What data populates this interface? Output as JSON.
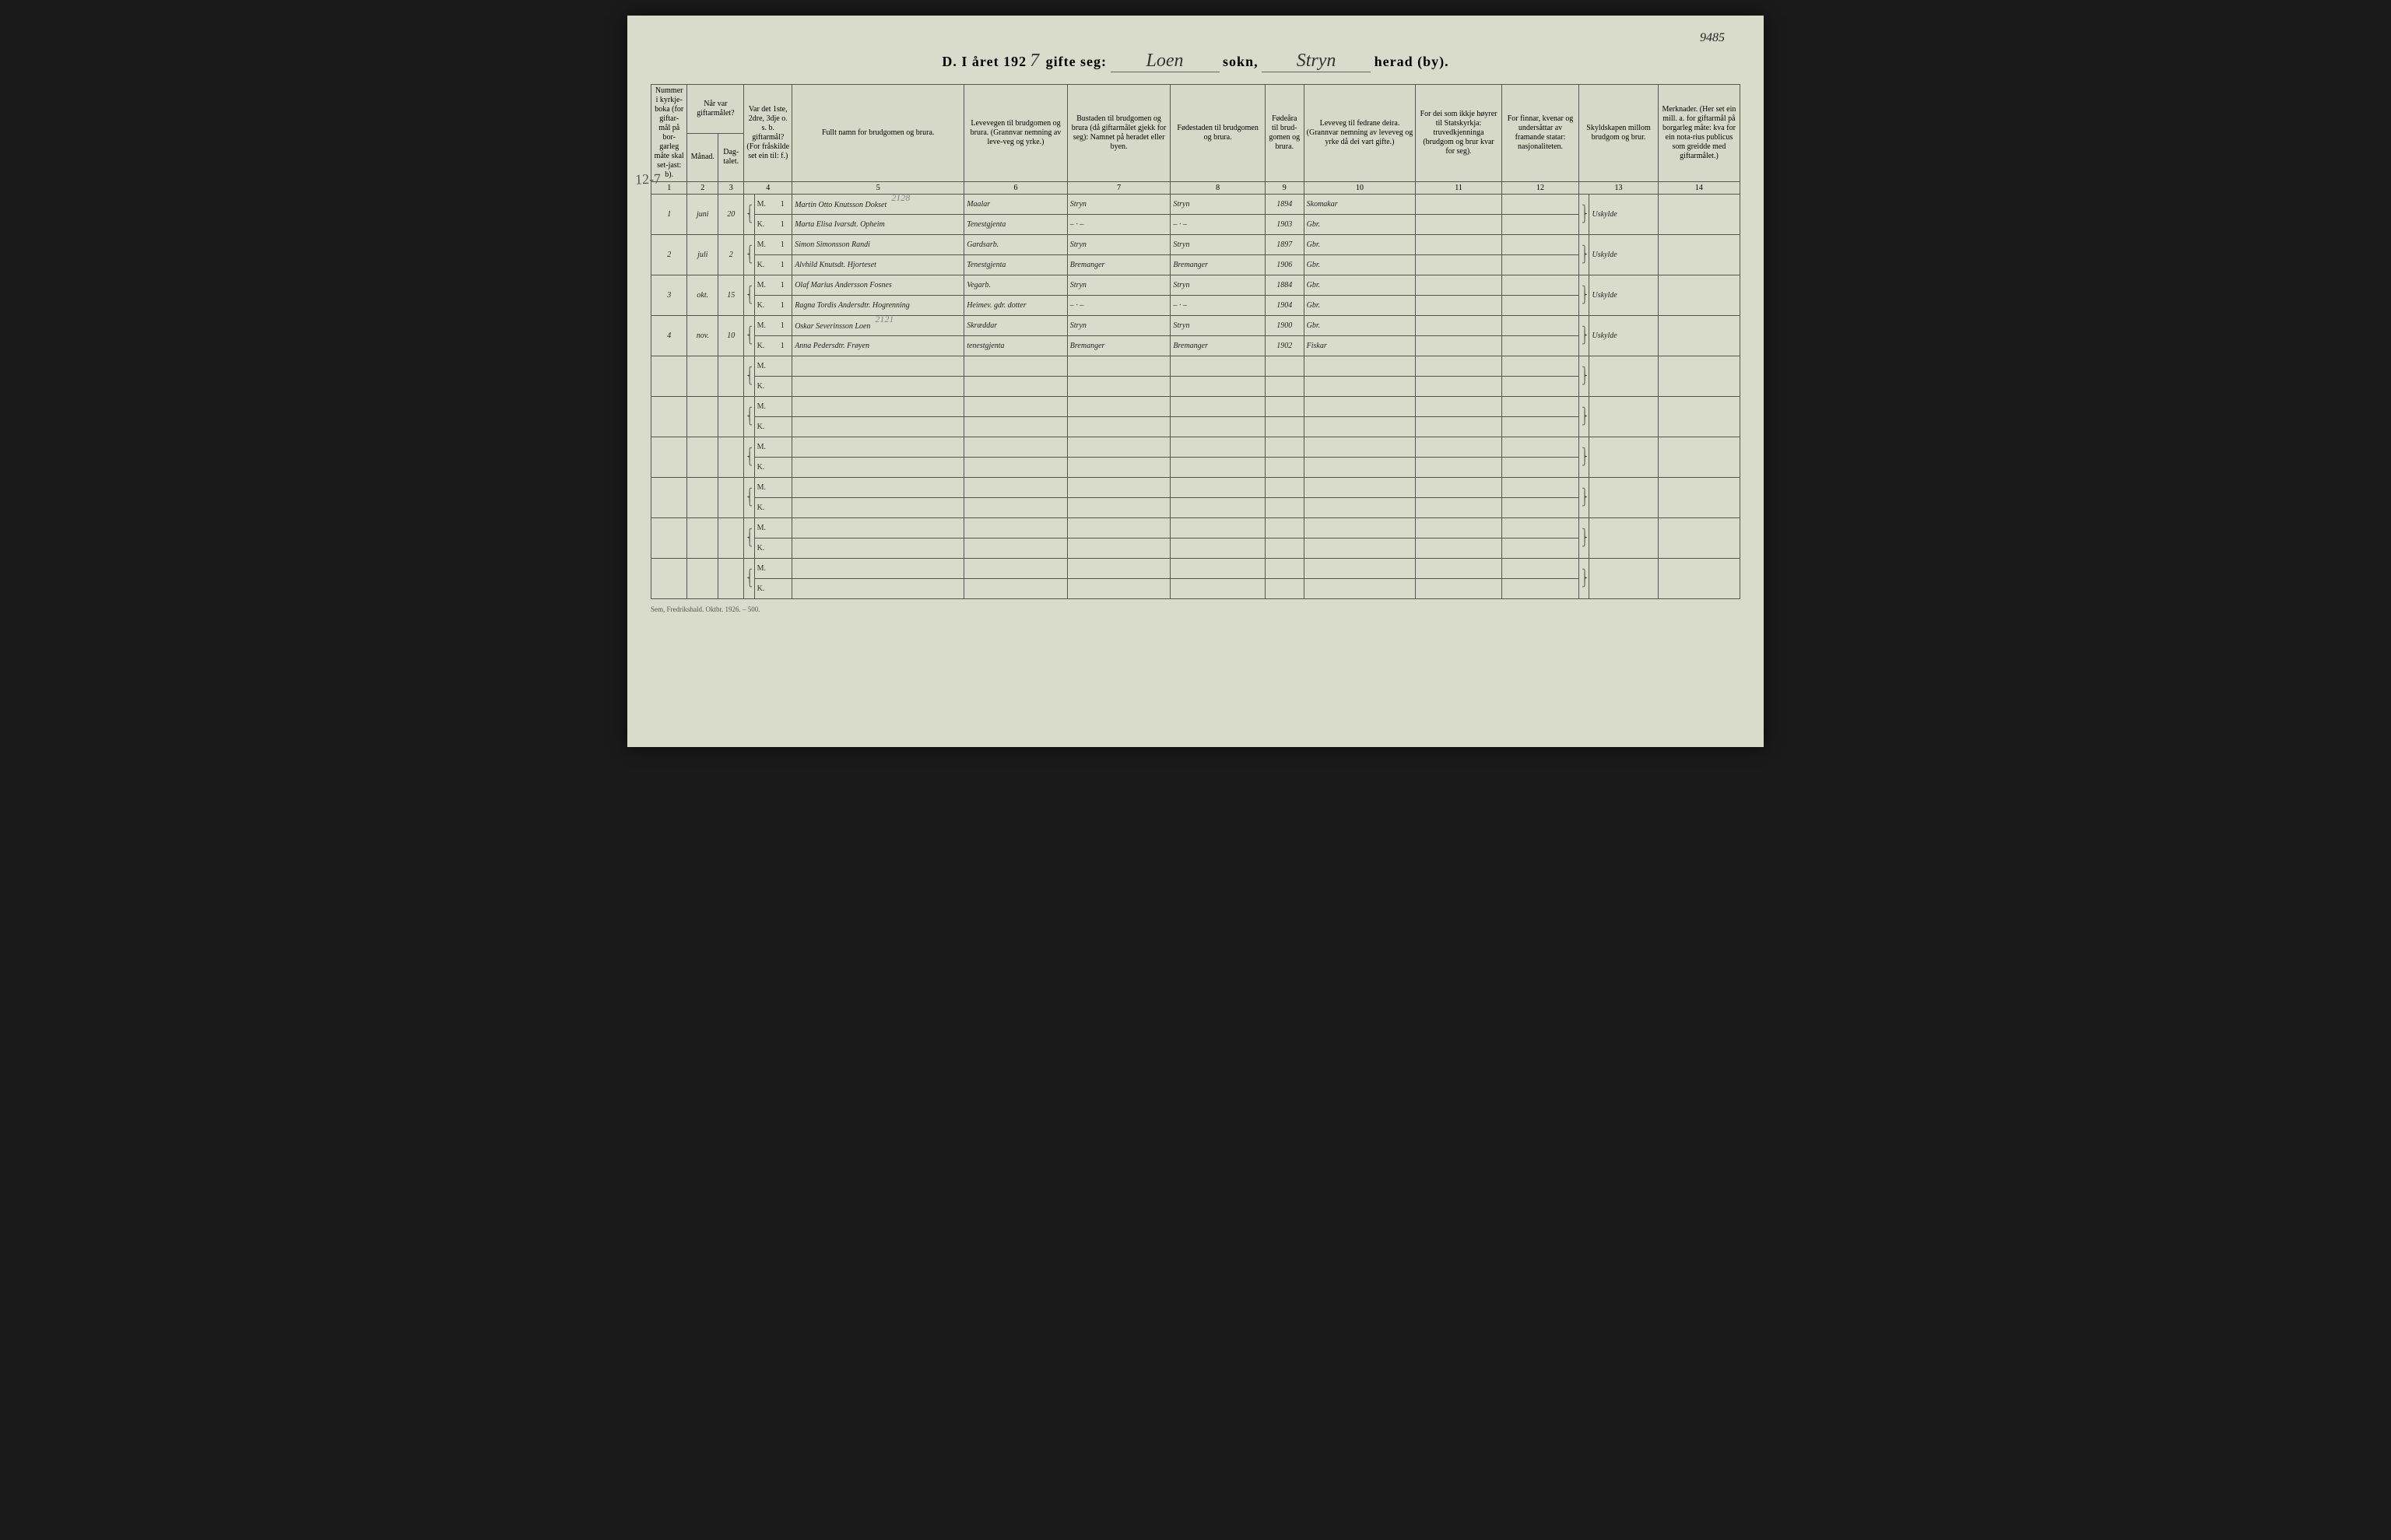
{
  "corner_note": "9485",
  "side_annot": "12-7",
  "title": {
    "prefix": "D.   I året 192",
    "year_digit": "7",
    "gifte_seg": "gifte seg:",
    "sokn_hand": "Loen",
    "sokn_label": "sokn,",
    "herad_hand": "Stryn",
    "herad_label": "herad (by)."
  },
  "headers": {
    "h1": "Nummer i kyrkje-boka (for giftar-mål på bor-garleg måte skal set-jast: b).",
    "h2": "Når var giftarmålet?",
    "h2a": "Månad.",
    "h2b": "Dag-talet.",
    "h4": "Var det 1ste, 2dre, 3dje o. s. b. giftarmål? (For fråskilde set ein til: f.)",
    "h5": "Fullt namn for brudgomen og brura.",
    "h6": "Levevegen til brudgomen og brura. (Grannvar nemning av leve-veg og yrke.)",
    "h7": "Bustaden til brudgomen og brura (då giftarmålet gjekk for seg): Namnet på heradet eller byen.",
    "h8": "Fødestaden til brudgomen og brura.",
    "h9": "Fødeåra til brud-gomen og brura.",
    "h10": "Leveveg til fedrane deira. (Grannvar nemning av leveveg og yrke då dei vart gifte.)",
    "h11": "For dei som ikkje høyrer til Statskyrkja: truvedkjenninga (brudgom og brur kvar for seg).",
    "h12": "For finnar, kvenar og undersåttar av framande statar: nasjonaliteten.",
    "h13": "Skyldskapen millom brudgom og brur.",
    "h14": "Merknader. (Her set ein mill. a. for giftarmål på borgarleg måte: kva for ein nota-rius publicus som greidde med giftarmålet.)"
  },
  "colnums": [
    "1",
    "2",
    "3",
    "4",
    "5",
    "6",
    "7",
    "8",
    "9",
    "10",
    "11",
    "12",
    "13",
    "14"
  ],
  "mk": {
    "m": "M.",
    "k": "K."
  },
  "entries": [
    {
      "num": "1",
      "month": "juni",
      "day": "20",
      "m": {
        "cnt": "1",
        "name": "Martin Otto Knutsson Dokset",
        "annot": "2128",
        "occ": "Maalar",
        "res": "Stryn",
        "birth": "Stryn",
        "year": "1894",
        "father": "Skomakar"
      },
      "k": {
        "cnt": "1",
        "name": "Marta Elisa Ivarsdt. Opheim",
        "occ": "Tenestgjenta",
        "res": "– · –",
        "birth": "– · –",
        "year": "1903",
        "father": "Gbr."
      },
      "rel": "Uskylde"
    },
    {
      "num": "2",
      "month": "juli",
      "day": "2",
      "m": {
        "cnt": "1",
        "name": "Simon Simonsson Randi",
        "occ": "Gardsarb.",
        "res": "Stryn",
        "birth": "Stryn",
        "year": "1897",
        "father": "Gbr."
      },
      "k": {
        "cnt": "1",
        "name": "Alvhild Knutsdt. Hjorteset",
        "occ": "Tenestgjenta",
        "res": "Bremanger",
        "birth": "Bremanger",
        "year": "1906",
        "father": "Gbr."
      },
      "rel": "Uskylde"
    },
    {
      "num": "3",
      "month": "okt.",
      "day": "15",
      "m": {
        "cnt": "1",
        "name": "Olaf Marius Andersson Fosnes",
        "occ": "Vegarb.",
        "res": "Stryn",
        "birth": "Stryn",
        "year": "1884",
        "father": "Gbr."
      },
      "k": {
        "cnt": "1",
        "name": "Ragna Tordis Andersdtr. Hogrenning",
        "occ": "Heimev. gdr. dotter",
        "res": "– · –",
        "birth": "– · –",
        "year": "1904",
        "father": "Gbr."
      },
      "rel": "Uskylde"
    },
    {
      "num": "4",
      "month": "nov.",
      "day": "10",
      "m": {
        "cnt": "1",
        "name": "Oskar Severinsson Loen",
        "annot": "2121",
        "occ": "Skræddar",
        "res": "Stryn",
        "birth": "Stryn",
        "year": "1900",
        "father": "Gbr."
      },
      "k": {
        "cnt": "1",
        "name": "Anna Pedersdtr. Frøyen",
        "occ": "tenestgjenta",
        "res": "Bremanger",
        "birth": "Bremanger",
        "year": "1902",
        "father": "Fiskar"
      },
      "rel": "Uskylde"
    }
  ],
  "blank_rows": 6,
  "footer": "Sem, Fredrikshald. Oktbr. 1926. – 500."
}
